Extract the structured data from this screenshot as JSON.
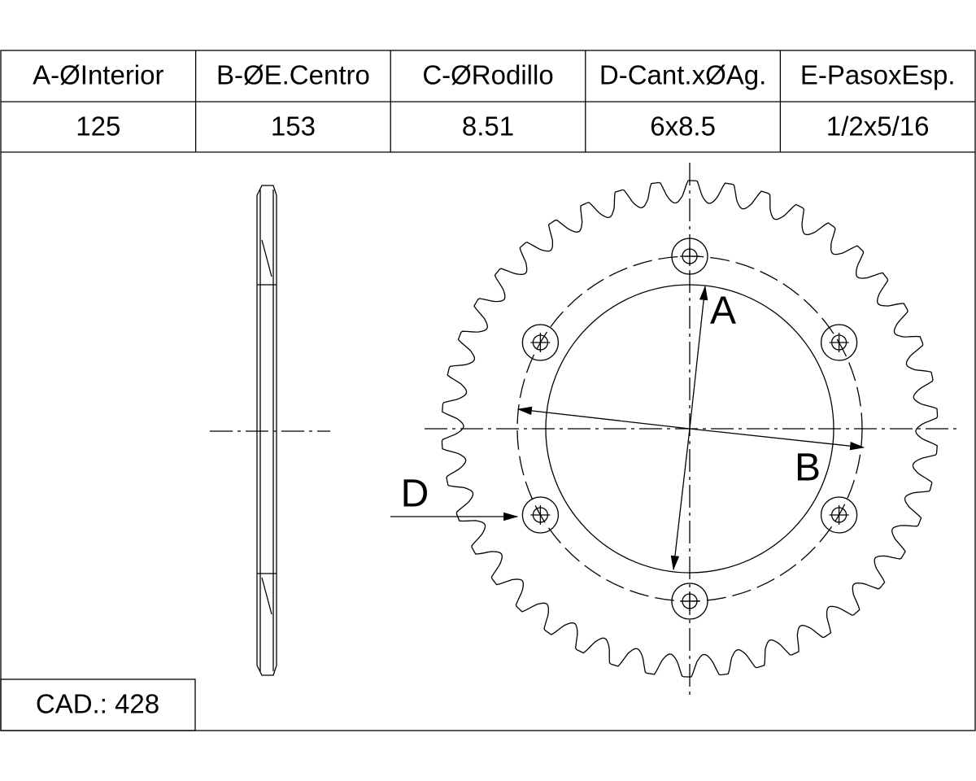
{
  "table": {
    "headers": [
      "A-ØInterior",
      "B-ØE.Centro",
      "C-ØRodillo",
      "D-Cant.xØAg.",
      "E-PasoxEsp."
    ],
    "rows": [
      [
        "125",
        "153",
        "8.51",
        "6x8.5",
        "1/2x5/16"
      ]
    ]
  },
  "labels": {
    "a": "A",
    "b": "B",
    "d": "D"
  },
  "footer": "CAD.: 428"
}
